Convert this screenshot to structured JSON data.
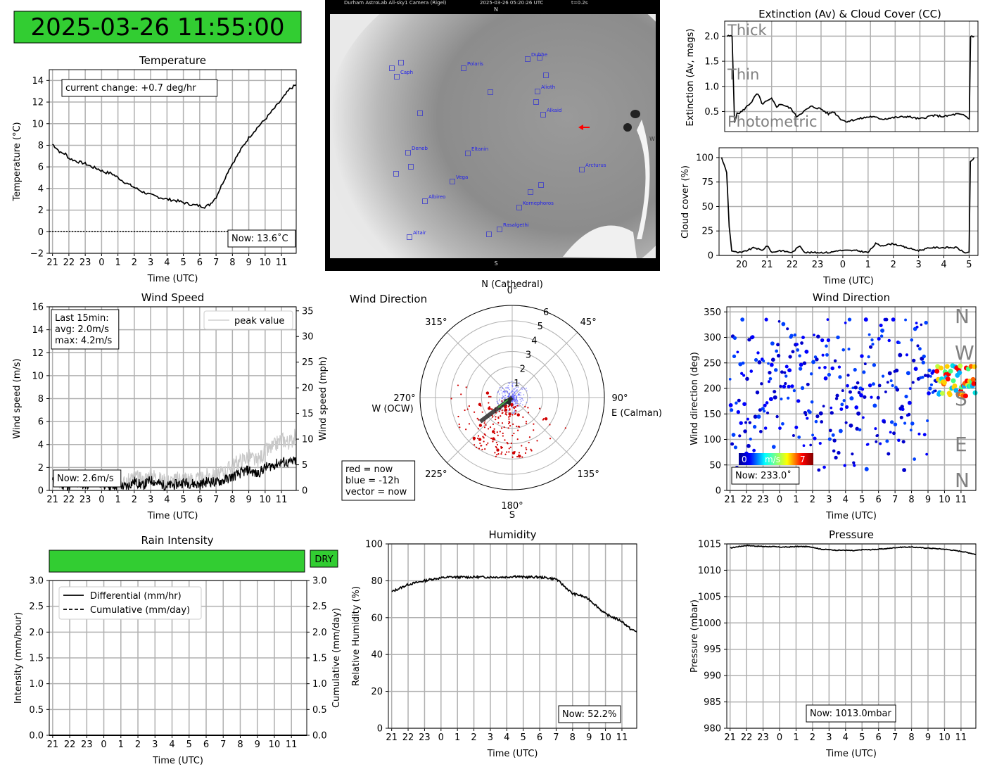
{
  "datetime": "2025-03-26 11:55:00",
  "colors": {
    "good_green": "#32cd32",
    "grid": "#b0b0b0",
    "line": "#000000",
    "peak_gray": "#c8c8c8",
    "arrow_red": "#ff0000"
  },
  "sky_camera": {
    "header_left": "Durham AstroLab All-sky1 Camera (Rigel)",
    "header_time": "2025-03-26 05:20:26 UTC",
    "header_exp": "t=0.2s",
    "north": "N",
    "south": "S",
    "west": "W",
    "stars": [
      "Caph",
      "Polaris",
      "Dubhe",
      "Alioth",
      "Alkaid",
      "Deneb",
      "Eltanin",
      "Arcturus",
      "Vega",
      "Kornephoros",
      "Albireo",
      "Rasalgethi",
      "Altair"
    ]
  },
  "chart_data": [
    {
      "id": "temperature",
      "type": "line",
      "title": "Temperature",
      "xlabel": "Time (UTC)",
      "ylabel": "Temperature (°C)",
      "xticks": [
        "21",
        "22",
        "23",
        "0",
        "1",
        "2",
        "3",
        "4",
        "5",
        "6",
        "7",
        "8",
        "9",
        "10",
        "11"
      ],
      "yticks": [
        "−2",
        "0",
        "2",
        "4",
        "6",
        "8",
        "10",
        "12",
        "14"
      ],
      "ylim": [
        -2,
        15
      ],
      "grid": true,
      "series": [
        {
          "x": [
            -3.0,
            -2.8,
            -2.5,
            -2.2,
            -2.0,
            -1.5,
            -1.0,
            -0.6,
            -0.2,
            0.2,
            0.6,
            1.0,
            1.5,
            2.0,
            2.5,
            3.0,
            3.5,
            4.0,
            4.5,
            5.0,
            5.5,
            6.0,
            6.3,
            6.6,
            7.0,
            7.4,
            7.8,
            8.2,
            8.6,
            9.0,
            9.5,
            10.0,
            10.5,
            11.0,
            11.5,
            11.9
          ],
          "y": [
            8.1,
            7.8,
            7.3,
            7.2,
            6.8,
            6.5,
            6.3,
            6.0,
            5.8,
            5.5,
            5.4,
            5.0,
            4.5,
            4.1,
            3.7,
            3.4,
            3.2,
            3.0,
            2.9,
            2.7,
            2.5,
            2.4,
            2.3,
            2.5,
            3.2,
            4.5,
            5.8,
            6.8,
            7.8,
            8.7,
            9.6,
            10.4,
            11.3,
            12.2,
            13.2,
            13.6
          ]
        }
      ],
      "dotted_zero_line": true,
      "annotation": "current change: +0.7 deg/hr",
      "now_label": "Now: 13.6˚C"
    },
    {
      "id": "wind_speed",
      "type": "line",
      "title": "Wind Speed",
      "xlabel": "Time (UTC)",
      "ylabel": "Wind speed (m/s)",
      "ylabel_right": "Wind speed (mph)",
      "xticks": [
        "21",
        "22",
        "23",
        "0",
        "1",
        "2",
        "3",
        "4",
        "5",
        "6",
        "7",
        "8",
        "9",
        "10",
        "11"
      ],
      "yticks": [
        "0",
        "2",
        "4",
        "6",
        "8",
        "10",
        "12",
        "14",
        "16"
      ],
      "yticks_right": [
        "0",
        "5",
        "10",
        "15",
        "20",
        "25",
        "30",
        "35"
      ],
      "ylim": [
        0,
        16
      ],
      "grid": true,
      "series": [
        {
          "x": [
            -3,
            -2.5,
            -2,
            -1.5,
            -1,
            -0.5,
            0,
            0.5,
            1,
            1.5,
            2,
            2.5,
            3,
            3.5,
            4,
            4.5,
            5,
            5.5,
            6,
            6.5,
            7,
            7.5,
            8,
            8.5,
            9,
            9.5,
            10,
            10.5,
            11,
            11.5,
            11.9
          ],
          "y": [
            0.8,
            0.5,
            0.4,
            0.6,
            0.5,
            0.7,
            0.6,
            0.4,
            0.5,
            0.3,
            0.8,
            0.4,
            0.9,
            0.6,
            0.4,
            0.5,
            0.7,
            0.6,
            0.5,
            0.8,
            0.7,
            0.9,
            1.2,
            1.5,
            1.8,
            1.4,
            2.0,
            2.2,
            2.5,
            2.4,
            2.6
          ]
        },
        {
          "name": "peak value",
          "x": [
            -3,
            -2.5,
            -2,
            -1.5,
            -1,
            -0.5,
            0,
            0.5,
            1,
            1.5,
            2,
            2.5,
            3,
            3.5,
            4,
            4.5,
            5,
            5.5,
            6,
            6.5,
            7,
            7.5,
            8,
            8.5,
            9,
            9.5,
            10,
            10.5,
            11,
            11.5,
            11.9
          ],
          "y": [
            1.0,
            0.8,
            0.7,
            1.0,
            0.9,
            1.1,
            1.0,
            0.8,
            0.9,
            0.6,
            1.3,
            0.8,
            1.5,
            1.0,
            0.8,
            0.9,
            1.2,
            1.0,
            0.9,
            1.4,
            1.2,
            1.6,
            2.2,
            2.6,
            3.0,
            2.5,
            3.4,
            3.8,
            4.5,
            4.2,
            4.8
          ]
        }
      ],
      "annotation": [
        "Last 15min:",
        "avg: 2.0m/s",
        "max: 4.2m/s"
      ],
      "now_label": "Now: 2.6m/s"
    },
    {
      "id": "rain",
      "type": "line",
      "title": "Rain Intensity",
      "xlabel": "Time (UTC)",
      "ylabel": "Intensity (mm/hour)",
      "ylabel_right": "Cumulative (mm/day)",
      "xticks": [
        "21",
        "22",
        "23",
        "0",
        "1",
        "2",
        "3",
        "4",
        "5",
        "6",
        "7",
        "8",
        "9",
        "10",
        "11"
      ],
      "yticks": [
        "0.0",
        "0.5",
        "1.0",
        "1.5",
        "2.0",
        "2.5",
        "3.0"
      ],
      "ylim": [
        0,
        3
      ],
      "grid": true,
      "series": [
        {
          "name": "Differential (mm/hr)",
          "x": [
            -3,
            11.9
          ],
          "y": [
            0,
            0
          ]
        },
        {
          "name": "Cumulative (mm/day)",
          "x": [
            -3,
            11.9
          ],
          "y": [
            0,
            0
          ]
        }
      ],
      "status": "DRY"
    },
    {
      "id": "extinction",
      "type": "line",
      "title": "Extinction (Av) & Cloud Cover (CC)",
      "ylabel": "Extinction (Av, mags)",
      "yticks": [
        "0.5",
        "1.0",
        "1.5",
        "2.0"
      ],
      "ylim": [
        0.1,
        2.3
      ],
      "grid": true,
      "zone_labels": [
        "Thick",
        "Thin",
        "Photometric"
      ],
      "series": [
        {
          "x": [
            19.2,
            19.4,
            19.5,
            19.6,
            19.8,
            20.0,
            20.2,
            20.4,
            20.5,
            20.6,
            20.8,
            21.0,
            21.2,
            21.4,
            21.6,
            21.8,
            22.0,
            22.3,
            22.6,
            23.0,
            23.3,
            23.5,
            23.8,
            24.0,
            24.5,
            25.0,
            25.5,
            26.0,
            26.5,
            27.0,
            27.5,
            28.0,
            28.5,
            28.8,
            29.0,
            29.05,
            29.2
          ],
          "y": [
            2.0,
            2.0,
            0.3,
            0.45,
            0.5,
            0.6,
            0.7,
            0.85,
            0.8,
            0.65,
            0.7,
            0.75,
            0.6,
            0.65,
            0.6,
            0.55,
            0.4,
            0.5,
            0.6,
            0.55,
            0.45,
            0.5,
            0.35,
            0.3,
            0.35,
            0.4,
            0.35,
            0.38,
            0.4,
            0.35,
            0.42,
            0.4,
            0.45,
            0.42,
            0.35,
            2.0,
            2.0
          ]
        }
      ]
    },
    {
      "id": "cloud_cover",
      "type": "line",
      "xlabel": "Time (UTC)",
      "ylabel": "Cloud cover (%)",
      "xticks": [
        "20",
        "21",
        "22",
        "23",
        "0",
        "1",
        "2",
        "3",
        "4",
        "5"
      ],
      "yticks": [
        "0",
        "25",
        "50",
        "75",
        "100"
      ],
      "ylim": [
        0,
        110
      ],
      "grid": true,
      "series": [
        {
          "x": [
            19.2,
            19.4,
            19.5,
            19.6,
            19.8,
            20.0,
            20.5,
            20.8,
            21.0,
            21.2,
            21.5,
            22.0,
            22.3,
            22.5,
            23.0,
            23.5,
            23.8,
            24.0,
            24.5,
            25.0,
            25.3,
            25.5,
            26.0,
            26.5,
            27.0,
            27.5,
            28.0,
            28.5,
            28.8,
            29.0,
            29.05,
            29.2
          ],
          "y": [
            100,
            85,
            30,
            5,
            3,
            3,
            8,
            5,
            10,
            3,
            5,
            3,
            10,
            3,
            3,
            3,
            5,
            5,
            5,
            3,
            12,
            10,
            12,
            8,
            5,
            8,
            8,
            8,
            3,
            3,
            95,
            100
          ]
        }
      ]
    },
    {
      "id": "wind_direction_polar",
      "type": "scatter",
      "title": "Wind Direction",
      "angle_labels": [
        "0°",
        "45°",
        "90°",
        "135°",
        "180°",
        "225°",
        "270°",
        "315°"
      ],
      "direction_labels": {
        "north": "N (Cathedral)",
        "east": "E (Calman)",
        "south": "S",
        "west": "W (OCW)"
      },
      "radial_ticks": [
        "1",
        "2",
        "3",
        "4",
        "5",
        "6"
      ],
      "rmax": 6,
      "vector": {
        "angle_deg": 233,
        "speed": 2.6
      },
      "legend": [
        "red = now",
        "blue = -12h",
        "vector = now"
      ]
    },
    {
      "id": "wind_direction_time",
      "type": "scatter",
      "title": "Wind Direction",
      "xlabel": "Time (UTC)",
      "ylabel": "Wind direction (deg)",
      "xticks": [
        "21",
        "22",
        "23",
        "0",
        "1",
        "2",
        "3",
        "4",
        "5",
        "6",
        "7",
        "8",
        "9",
        "10",
        "11"
      ],
      "yticks": [
        "0",
        "50",
        "100",
        "150",
        "200",
        "250",
        "300",
        "350"
      ],
      "ylim": [
        0,
        360
      ],
      "grid": true,
      "compass_labels": [
        "N",
        "W",
        "S",
        "E",
        "N"
      ],
      "colorbar": {
        "min": "0",
        "label": "m/s",
        "max": "7"
      },
      "now_label": "Now: 233.0˚"
    },
    {
      "id": "humidity",
      "type": "line",
      "title": "Humidity",
      "xlabel": "Time (UTC)",
      "ylabel": "Relative Humidity (%)",
      "xticks": [
        "21",
        "22",
        "23",
        "0",
        "1",
        "2",
        "3",
        "4",
        "5",
        "6",
        "7",
        "8",
        "9",
        "10",
        "11"
      ],
      "yticks": [
        "0",
        "20",
        "40",
        "60",
        "80",
        "100"
      ],
      "ylim": [
        0,
        100
      ],
      "grid": true,
      "series": [
        {
          "x": [
            -3,
            -2.5,
            -2,
            -1.5,
            -1,
            -0.5,
            0,
            0.5,
            1,
            1.5,
            2,
            2.5,
            3,
            3.5,
            4,
            4.5,
            5,
            5.5,
            6,
            6.5,
            7,
            7.5,
            8,
            8.5,
            9,
            9.5,
            10,
            10.5,
            11,
            11.5,
            11.9
          ],
          "y": [
            74,
            76,
            78,
            79,
            80,
            81,
            81.5,
            82,
            82,
            82,
            82,
            82,
            82,
            82,
            82,
            82.5,
            82,
            82,
            82,
            81.5,
            81,
            77,
            73,
            72,
            70,
            66,
            62,
            60,
            58,
            54,
            52.2
          ]
        }
      ],
      "now_label": "Now: 52.2%"
    },
    {
      "id": "pressure",
      "type": "line",
      "title": "Pressure",
      "xlabel": "Time (UTC)",
      "ylabel": "Pressure (mbar)",
      "xticks": [
        "21",
        "22",
        "23",
        "0",
        "1",
        "2",
        "3",
        "4",
        "5",
        "6",
        "7",
        "8",
        "9",
        "10",
        "11"
      ],
      "yticks": [
        "980",
        "985",
        "990",
        "995",
        "1000",
        "1005",
        "1010",
        "1015"
      ],
      "ylim": [
        980,
        1015
      ],
      "grid": true,
      "series": [
        {
          "x": [
            -3,
            -2.5,
            -2,
            -1.5,
            -1,
            -0.5,
            0,
            0.5,
            1,
            1.5,
            2,
            2.5,
            3,
            3.5,
            4,
            4.5,
            5,
            5.5,
            6,
            6.5,
            7,
            7.5,
            8,
            8.5,
            9,
            9.5,
            10,
            10.5,
            11,
            11.5,
            11.9
          ],
          "y": [
            1014.2,
            1014.5,
            1014.7,
            1014.6,
            1014.5,
            1014.5,
            1014.4,
            1014.4,
            1014.5,
            1014.5,
            1014.4,
            1014.0,
            1013.9,
            1013.8,
            1013.8,
            1013.7,
            1013.9,
            1013.9,
            1014.0,
            1014.1,
            1014.3,
            1014.4,
            1014.4,
            1014.3,
            1014.2,
            1014.1,
            1014.0,
            1013.8,
            1013.6,
            1013.3,
            1013.0
          ]
        }
      ],
      "now_label": "Now: 1013.0mbar"
    }
  ]
}
